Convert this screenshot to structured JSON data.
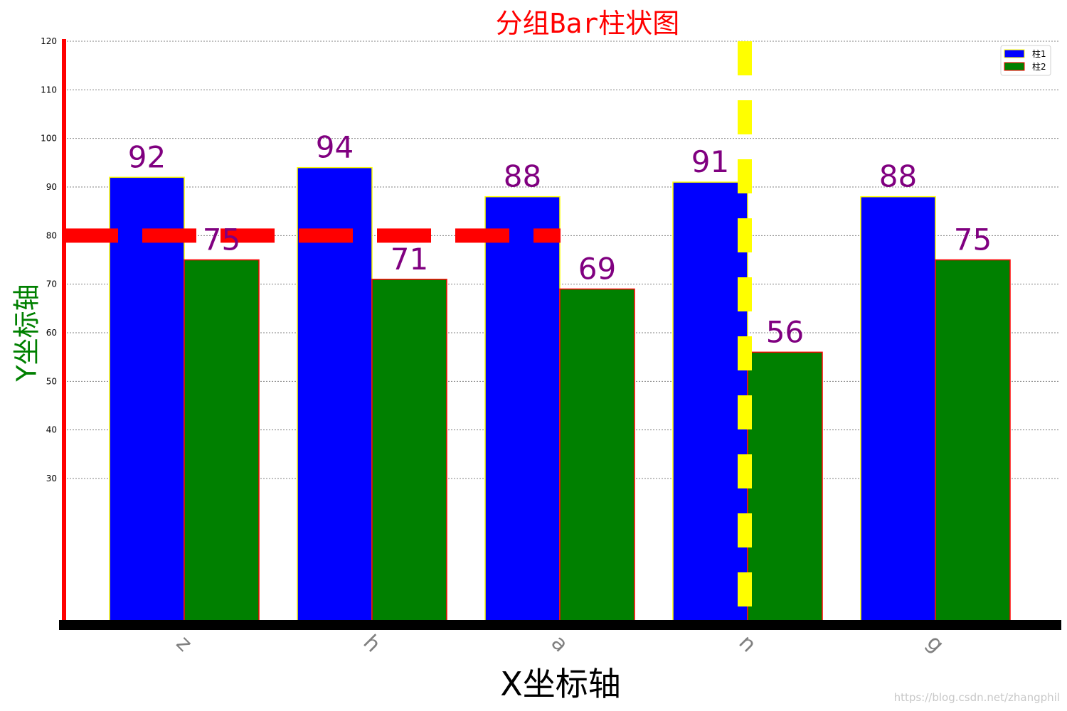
{
  "chart_data": {
    "type": "bar",
    "title": "分组Bar柱状图",
    "xlabel": "X坐标轴",
    "ylabel": "Y坐标轴",
    "categories": [
      "z",
      "h",
      "a",
      "n",
      "g"
    ],
    "series": [
      {
        "name": "柱1",
        "values": [
          92,
          94,
          88,
          91,
          88
        ],
        "color": "#0000ff",
        "edge_color": "#ffff00"
      },
      {
        "name": "柱2",
        "values": [
          75,
          71,
          69,
          56,
          75
        ],
        "color": "#008000",
        "edge_color": "#ff0000"
      }
    ],
    "ylim": [
      0,
      120
    ],
    "yticks": [
      30,
      40,
      50,
      60,
      70,
      80,
      90,
      100,
      110,
      120
    ],
    "grid": "y-dotted",
    "legend_position": "top-right",
    "data_labels": true,
    "reference_lines": [
      {
        "orientation": "horizontal",
        "y": 80,
        "style": "dashed",
        "color": "#ff0000",
        "extent": "partial"
      },
      {
        "orientation": "vertical",
        "x": "n",
        "style": "dashed",
        "color": "#ffff00"
      }
    ]
  },
  "colors": {
    "title": "#ff0000",
    "ylabel": "#008000",
    "xlabel": "#000000",
    "data_label": "#800080",
    "tick_label_x": "#808080",
    "left_spine": "#ff0000",
    "bottom_spine": "#000000"
  },
  "watermark": "https://blog.csdn.net/zhangphil"
}
